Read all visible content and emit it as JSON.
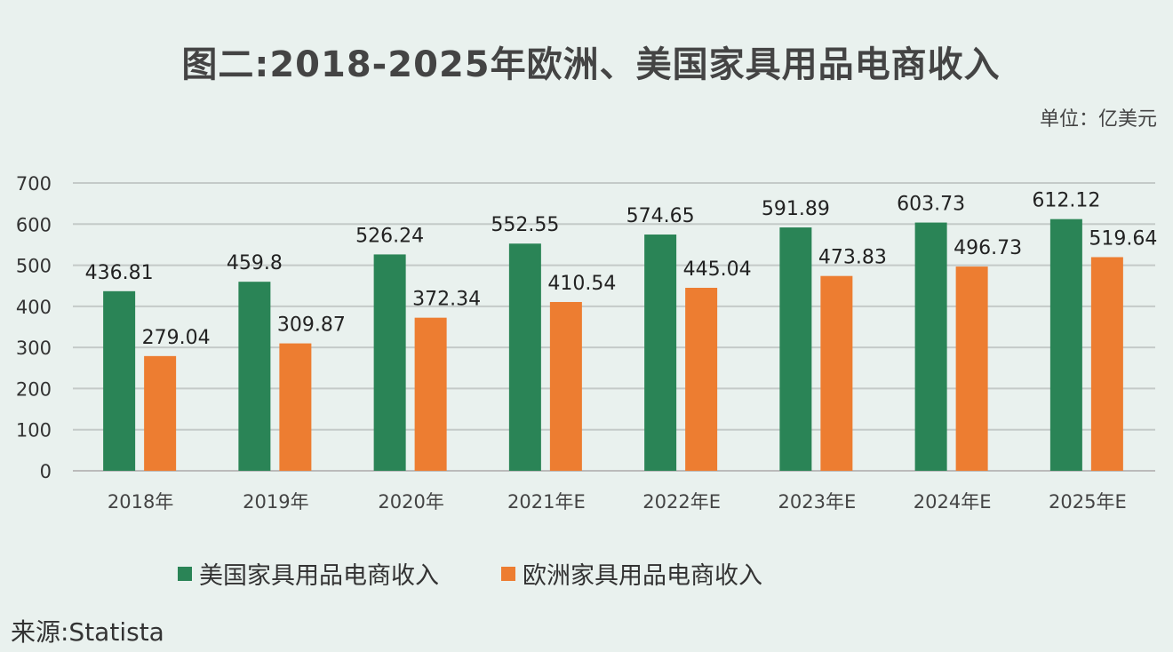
{
  "title": "图二:2018-2025年欧洲、美国家具用品电商收入",
  "unit": "单位：亿美元",
  "source": "来源:Statista",
  "colors": {
    "us": "#2a8456",
    "eu": "#ed7d31",
    "background": "#e9f1ee",
    "grid": "#c4cac8"
  },
  "chart_data": {
    "type": "bar",
    "title": "图二:2018-2025年欧洲、美国家具用品电商收入",
    "ylabel": "单位：亿美元",
    "categories": [
      "2018年",
      "2019年",
      "2020年",
      "2021年E",
      "2022年E",
      "2023年E",
      "2024年E",
      "2025年E"
    ],
    "series": [
      {
        "name": "美国家具用品电商收入",
        "values": [
          436.81,
          459.8,
          526.24,
          552.55,
          574.65,
          591.89,
          603.73,
          612.12
        ]
      },
      {
        "name": "欧洲家具用品电商收入",
        "values": [
          279.04,
          309.87,
          372.34,
          410.54,
          445.04,
          473.83,
          496.73,
          519.64
        ]
      }
    ],
    "ylim": [
      0,
      700
    ],
    "yticks": [
      0,
      100,
      200,
      300,
      400,
      500,
      600,
      700
    ],
    "grid": true,
    "legend": "bottom"
  }
}
